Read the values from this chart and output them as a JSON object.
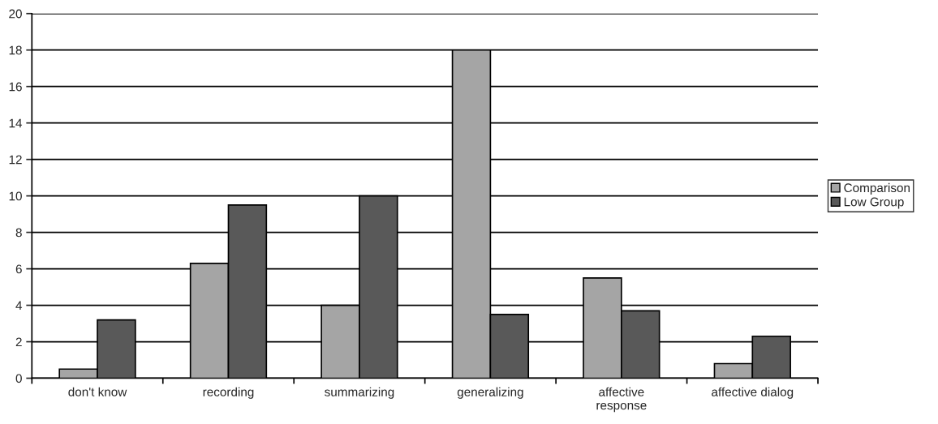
{
  "chart_data": {
    "type": "bar",
    "categories": [
      "don't know",
      "recording",
      "summarizing",
      "generalizing",
      "affective\nresponse",
      "affective dialog"
    ],
    "series": [
      {
        "name": "Comparison",
        "color": "#a5a5a5",
        "values": [
          0.5,
          6.3,
          4.0,
          18.0,
          5.5,
          0.8
        ]
      },
      {
        "name": "Low Group",
        "color": "#595959",
        "values": [
          3.2,
          9.5,
          10.0,
          3.5,
          3.7,
          2.3
        ]
      }
    ],
    "ylim": [
      0,
      20
    ],
    "yticks": [
      0,
      2,
      4,
      6,
      8,
      10,
      12,
      14,
      16,
      18,
      20
    ],
    "grid": "y",
    "legend": "right"
  }
}
